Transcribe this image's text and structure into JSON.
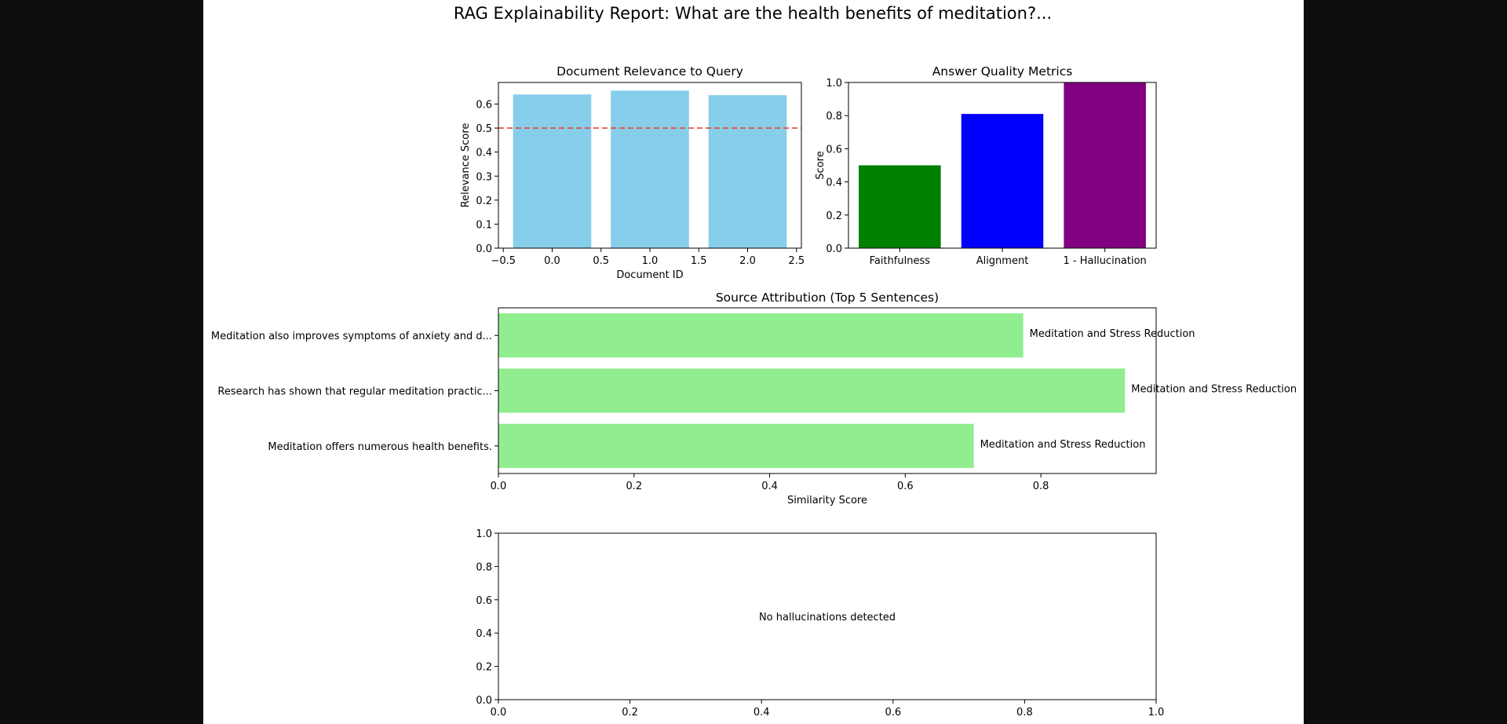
{
  "figure": {
    "title": "RAG Explainability Report: What are the health benefits of meditation?..."
  },
  "chart_data": [
    {
      "id": "relevance",
      "type": "bar",
      "title": "Document Relevance to Query",
      "xlabel": "Document ID",
      "ylabel": "Relevance Score",
      "x": [
        0,
        1,
        2
      ],
      "values": [
        0.64,
        0.656,
        0.637
      ],
      "bar_width": 0.8,
      "xlim": [
        -0.55,
        2.55
      ],
      "ylim": [
        0,
        0.69
      ],
      "xticks": [
        -0.5,
        0.0,
        0.5,
        1.0,
        1.5,
        2.0,
        2.5
      ],
      "xtick_labels": [
        "−0.5",
        "0.0",
        "0.5",
        "1.0",
        "1.5",
        "2.0",
        "2.5"
      ],
      "yticks": [
        0.0,
        0.1,
        0.2,
        0.3,
        0.4,
        0.5,
        0.6
      ],
      "ytick_labels": [
        "0.0",
        "0.1",
        "0.2",
        "0.3",
        "0.4",
        "0.5",
        "0.6"
      ],
      "threshold": 0.5,
      "color": "#87ceeb",
      "threshold_color": "#e8463a",
      "grid": false
    },
    {
      "id": "quality",
      "type": "bar",
      "title": "Answer Quality Metrics",
      "ylabel": "Score",
      "xlabel": "",
      "categories": [
        "Faithfulness",
        "Alignment",
        "1 - Hallucination"
      ],
      "values": [
        0.5,
        0.81,
        1.0
      ],
      "colors": [
        "#008000",
        "#0000ff",
        "#800080"
      ],
      "ylim": [
        0,
        1.0
      ],
      "yticks": [
        0.0,
        0.2,
        0.4,
        0.6,
        0.8,
        1.0
      ],
      "ytick_labels": [
        "0.0",
        "0.2",
        "0.4",
        "0.6",
        "0.8",
        "1.0"
      ],
      "grid": false
    },
    {
      "id": "attribution",
      "type": "bar",
      "orientation": "horizontal",
      "title": "Source Attribution (Top 5 Sentences)",
      "xlabel": "Similarity Score",
      "categories": [
        "Meditation also improves symptoms of anxiety and d...",
        "Research has shown that regular meditation practic...",
        "Meditation offers numerous health benefits."
      ],
      "values": [
        0.774,
        0.924,
        0.701
      ],
      "bar_labels": [
        "Meditation and Stress Reduction",
        "Meditation and Stress Reduction",
        "Meditation and Stress Reduction"
      ],
      "xlim": [
        0,
        0.97
      ],
      "xticks": [
        0.0,
        0.2,
        0.4,
        0.6,
        0.8
      ],
      "xtick_labels": [
        "0.0",
        "0.2",
        "0.4",
        "0.6",
        "0.8"
      ],
      "color": "#90ee90",
      "grid": false
    },
    {
      "id": "hallucination",
      "type": "scatter",
      "annotation": "No hallucinations detected",
      "xlim": [
        0,
        1.0
      ],
      "ylim": [
        0,
        1.0
      ],
      "xticks": [
        0.0,
        0.2,
        0.4,
        0.6,
        0.8,
        1.0
      ],
      "xtick_labels": [
        "0.0",
        "0.2",
        "0.4",
        "0.6",
        "0.8",
        "1.0"
      ],
      "yticks": [
        0.0,
        0.2,
        0.4,
        0.6,
        0.8,
        1.0
      ],
      "ytick_labels": [
        "0.0",
        "0.2",
        "0.4",
        "0.6",
        "0.8",
        "1.0"
      ],
      "grid": false
    }
  ]
}
